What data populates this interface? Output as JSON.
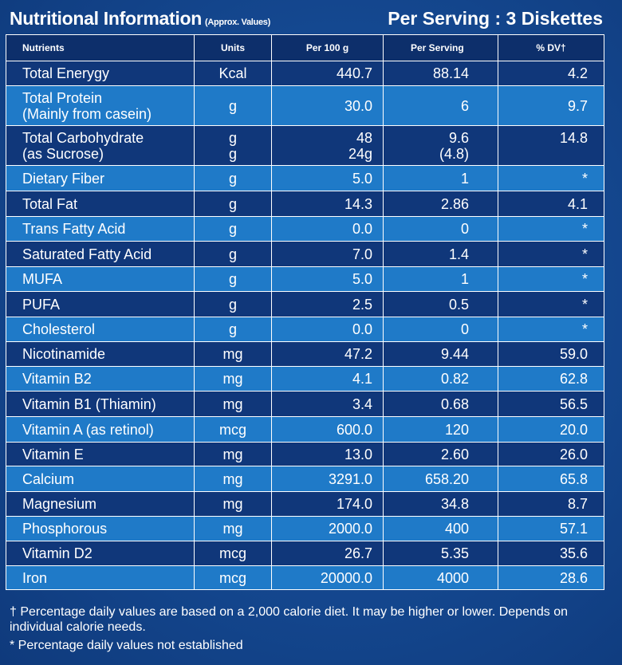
{
  "header": {
    "title": "Nutritional Information",
    "subtitle": "(Approx. Values)",
    "serving": "Per Serving : 3 Diskettes"
  },
  "table": {
    "columns": [
      "Nutrients",
      "Units",
      "Per 100 g",
      "Per Serving",
      "% DV†"
    ],
    "rows": [
      {
        "name": [
          "Total Energy​gy"
        ],
        "units": [
          "Kcal"
        ],
        "per100": [
          "440.7"
        ],
        "serving": [
          "88.14"
        ],
        "dv": "4.2"
      },
      {
        "name": [
          "Total Protein",
          "(Mainly from casein)"
        ],
        "units": [
          "g"
        ],
        "per100": [
          "30.0"
        ],
        "serving": [
          "6"
        ],
        "dv": "9.7"
      },
      {
        "name": [
          "Total Carbohydrate",
          "(as Sucrose)"
        ],
        "units": [
          "g",
          "g"
        ],
        "per100": [
          "48",
          "24g"
        ],
        "serving": [
          "9.6",
          "(4.8)"
        ],
        "dv": "14.8"
      },
      {
        "name": [
          "Dietary Fiber"
        ],
        "units": [
          "g"
        ],
        "per100": [
          "5.0"
        ],
        "serving": [
          "1"
        ],
        "dv": "*"
      },
      {
        "name": [
          "Total Fat"
        ],
        "units": [
          "g"
        ],
        "per100": [
          "14.3"
        ],
        "serving": [
          "2.86"
        ],
        "dv": "4.1"
      },
      {
        "name": [
          "Trans Fatty Acid"
        ],
        "units": [
          "g"
        ],
        "per100": [
          "0.0"
        ],
        "serving": [
          "0"
        ],
        "dv": "*"
      },
      {
        "name": [
          "Saturated Fatty Acid"
        ],
        "units": [
          "g"
        ],
        "per100": [
          "7.0"
        ],
        "serving": [
          "1.4"
        ],
        "dv": "*"
      },
      {
        "name": [
          "MUFA"
        ],
        "units": [
          "g"
        ],
        "per100": [
          "5.0"
        ],
        "serving": [
          "1"
        ],
        "dv": "*"
      },
      {
        "name": [
          "PUFA"
        ],
        "units": [
          "g"
        ],
        "per100": [
          "2.5"
        ],
        "serving": [
          "0.5"
        ],
        "dv": "*"
      },
      {
        "name": [
          "Cholesterol"
        ],
        "units": [
          "g"
        ],
        "per100": [
          "0.0"
        ],
        "serving": [
          "0"
        ],
        "dv": "*"
      },
      {
        "name": [
          "Nicotinamide"
        ],
        "units": [
          "mg"
        ],
        "per100": [
          "47.2"
        ],
        "serving": [
          "9.44"
        ],
        "dv": "59.0"
      },
      {
        "name": [
          "Vitamin B2"
        ],
        "units": [
          "mg"
        ],
        "per100": [
          "4.1"
        ],
        "serving": [
          "0.82"
        ],
        "dv": "62.8"
      },
      {
        "name": [
          "Vitamin B1 (Thiamin)"
        ],
        "units": [
          "mg"
        ],
        "per100": [
          "3.4"
        ],
        "serving": [
          "0.68"
        ],
        "dv": "56.5"
      },
      {
        "name": [
          "Vitamin A (as retinol)"
        ],
        "units": [
          "mcg"
        ],
        "per100": [
          "600.0"
        ],
        "serving": [
          "120"
        ],
        "dv": "20.0"
      },
      {
        "name": [
          "Vitamin E"
        ],
        "units": [
          "mg"
        ],
        "per100": [
          "13.0"
        ],
        "serving": [
          "2.60"
        ],
        "dv": "26.0"
      },
      {
        "name": [
          "Calcium"
        ],
        "units": [
          "mg"
        ],
        "per100": [
          "3291.0"
        ],
        "serving": [
          "658.20"
        ],
        "dv": "65.8"
      },
      {
        "name": [
          "Magnesium"
        ],
        "units": [
          "mg"
        ],
        "per100": [
          "174.0"
        ],
        "serving": [
          "34.8"
        ],
        "dv": "8.7"
      },
      {
        "name": [
          "Phosphorous"
        ],
        "units": [
          "mg"
        ],
        "per100": [
          "2000.0"
        ],
        "serving": [
          "400"
        ],
        "dv": "57.1"
      },
      {
        "name": [
          "Vitamin D2"
        ],
        "units": [
          "mcg"
        ],
        "per100": [
          "26.7"
        ],
        "serving": [
          "5.35"
        ],
        "dv": "35.6"
      },
      {
        "name": [
          "Iron"
        ],
        "units": [
          "mcg"
        ],
        "per100": [
          "20000.0"
        ],
        "serving": [
          "4000"
        ],
        "dv": "28.6"
      }
    ]
  },
  "footnotes": [
    "† Percentage daily values are based on a 2,000 calorie diet. It may be higher or lower. Depends on individual calorie needs.",
    "* Percentage daily values not established"
  ],
  "colors": {
    "row_dark": "#10377a",
    "row_light": "#1f7ac8",
    "header_row": "#0d2f6b"
  }
}
